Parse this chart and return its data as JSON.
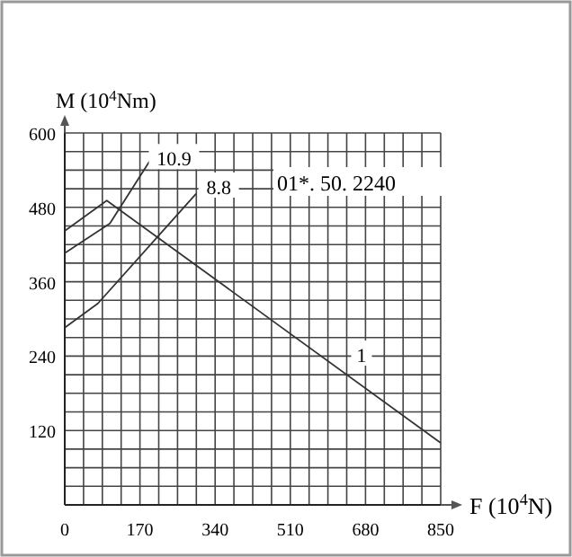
{
  "chart_data": {
    "type": "line",
    "xlabel": "F (10$^{4}$N)",
    "ylabel": "M (10$^{4}$Nm)",
    "xlim": [
      0,
      850
    ],
    "ylim": [
      0,
      600
    ],
    "xticks": [
      0,
      170,
      340,
      510,
      680,
      850
    ],
    "yticks": [
      {
        "value": 0,
        "label": null
      },
      120,
      240,
      360,
      480,
      600
    ],
    "grid": true,
    "line_style": "solid",
    "series": [
      {
        "name": "1",
        "color": "#333333",
        "x": [
          0,
          95,
          850
        ],
        "values": [
          442,
          491,
          100
        ]
      },
      {
        "name": "10.9",
        "color": "#333333",
        "x": [
          0,
          102,
          195
        ],
        "values": [
          406,
          454,
          558
        ]
      },
      {
        "name": "8.8",
        "color": "#333333",
        "x": [
          0,
          75,
          297
        ],
        "values": [
          286,
          325,
          502
        ]
      }
    ],
    "annotations": [
      "01*. 50. 2240"
    ]
  }
}
